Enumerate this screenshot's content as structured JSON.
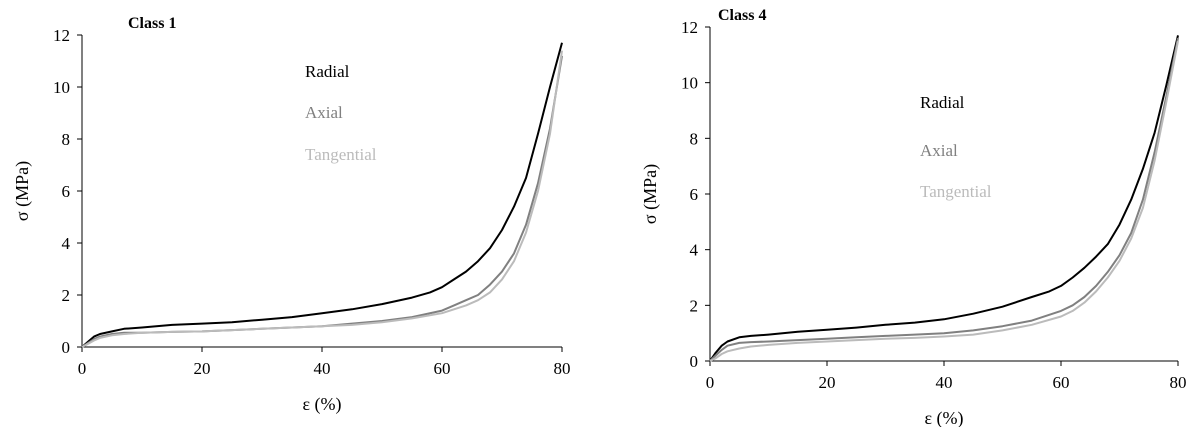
{
  "chart_data": [
    {
      "type": "line",
      "title": "Class 1",
      "xlabel": "ε (%)",
      "ylabel": "σ (MPa)",
      "xlim": [
        0,
        80
      ],
      "ylim": [
        0,
        12
      ],
      "xticks": [
        "0",
        "20",
        "40",
        "60",
        "80"
      ],
      "yticks": [
        "0",
        "2",
        "4",
        "6",
        "8",
        "10",
        "12"
      ],
      "grid": false,
      "legend_position": "top-center",
      "series": [
        {
          "name": "Radial",
          "color": "#000000",
          "x": [
            0,
            1,
            2,
            3,
            5,
            7,
            10,
            15,
            20,
            25,
            30,
            35,
            40,
            45,
            50,
            55,
            58,
            60,
            62,
            64,
            66,
            68,
            70,
            72,
            74,
            76,
            78,
            80
          ],
          "y": [
            0,
            0.2,
            0.4,
            0.5,
            0.6,
            0.7,
            0.75,
            0.85,
            0.9,
            0.95,
            1.05,
            1.15,
            1.3,
            1.45,
            1.65,
            1.9,
            2.1,
            2.3,
            2.6,
            2.9,
            3.3,
            3.8,
            4.5,
            5.4,
            6.5,
            8.2,
            10.0,
            11.7
          ]
        },
        {
          "name": "Axial",
          "color": "#808080",
          "x": [
            0,
            1,
            2,
            3,
            5,
            7,
            10,
            15,
            20,
            25,
            30,
            35,
            40,
            45,
            50,
            55,
            60,
            62,
            64,
            66,
            68,
            70,
            72,
            74,
            76,
            78,
            80
          ],
          "y": [
            0,
            0.15,
            0.3,
            0.4,
            0.5,
            0.55,
            0.55,
            0.58,
            0.6,
            0.65,
            0.7,
            0.75,
            0.8,
            0.9,
            1.0,
            1.15,
            1.4,
            1.6,
            1.8,
            2.0,
            2.4,
            2.9,
            3.6,
            4.7,
            6.3,
            8.4,
            11.2
          ]
        },
        {
          "name": "Tangential",
          "color": "#bbbbbb",
          "x": [
            0,
            1,
            2,
            3,
            5,
            7,
            10,
            15,
            20,
            25,
            30,
            35,
            40,
            45,
            50,
            55,
            60,
            62,
            64,
            66,
            68,
            70,
            72,
            74,
            76,
            78,
            80
          ],
          "y": [
            0,
            0.12,
            0.25,
            0.35,
            0.45,
            0.5,
            0.55,
            0.58,
            0.6,
            0.65,
            0.7,
            0.75,
            0.8,
            0.85,
            0.95,
            1.1,
            1.3,
            1.45,
            1.6,
            1.8,
            2.1,
            2.6,
            3.3,
            4.4,
            6.0,
            8.2,
            11.4
          ]
        }
      ]
    },
    {
      "type": "line",
      "title": "Class 4",
      "xlabel": "ε (%)",
      "ylabel": "σ (MPa)",
      "xlim": [
        0,
        80
      ],
      "ylim": [
        0,
        12
      ],
      "xticks": [
        "0",
        "20",
        "40",
        "60",
        "80"
      ],
      "yticks": [
        "0",
        "2",
        "4",
        "6",
        "8",
        "10",
        "12"
      ],
      "grid": false,
      "legend_position": "center",
      "series": [
        {
          "name": "Radial",
          "color": "#000000",
          "x": [
            0,
            1,
            2,
            3,
            5,
            7,
            10,
            15,
            20,
            25,
            30,
            35,
            40,
            45,
            50,
            55,
            58,
            60,
            62,
            64,
            66,
            68,
            70,
            72,
            74,
            76,
            78,
            80
          ],
          "y": [
            0,
            0.3,
            0.55,
            0.7,
            0.85,
            0.9,
            0.95,
            1.05,
            1.12,
            1.2,
            1.3,
            1.38,
            1.5,
            1.7,
            1.95,
            2.3,
            2.5,
            2.7,
            3.0,
            3.35,
            3.75,
            4.2,
            4.9,
            5.8,
            6.9,
            8.2,
            9.9,
            11.7
          ]
        },
        {
          "name": "Axial",
          "color": "#808080",
          "x": [
            0,
            1,
            2,
            3,
            5,
            7,
            10,
            15,
            20,
            25,
            30,
            35,
            40,
            45,
            50,
            55,
            60,
            62,
            64,
            66,
            68,
            70,
            72,
            74,
            76,
            78,
            80
          ],
          "y": [
            0,
            0.2,
            0.4,
            0.55,
            0.65,
            0.68,
            0.7,
            0.75,
            0.8,
            0.85,
            0.9,
            0.95,
            1.0,
            1.1,
            1.25,
            1.45,
            1.8,
            2.0,
            2.3,
            2.7,
            3.2,
            3.8,
            4.6,
            5.8,
            7.5,
            9.5,
            11.6
          ]
        },
        {
          "name": "Tangential",
          "color": "#bbbbbb",
          "x": [
            0,
            1,
            2,
            3,
            5,
            7,
            10,
            15,
            20,
            25,
            30,
            35,
            40,
            45,
            50,
            55,
            60,
            62,
            64,
            66,
            68,
            70,
            72,
            74,
            76,
            78,
            80
          ],
          "y": [
            0,
            0.1,
            0.25,
            0.35,
            0.45,
            0.52,
            0.58,
            0.65,
            0.7,
            0.75,
            0.8,
            0.83,
            0.88,
            0.95,
            1.1,
            1.3,
            1.6,
            1.8,
            2.1,
            2.5,
            3.0,
            3.6,
            4.4,
            5.5,
            7.2,
            9.3,
            11.5
          ]
        }
      ]
    }
  ]
}
